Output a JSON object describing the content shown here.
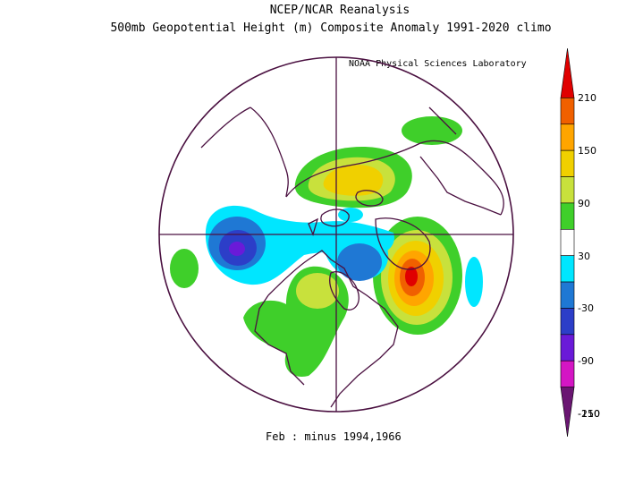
{
  "header": {
    "title": "NCEP/NCAR Reanalysis",
    "subtitle": "500mb Geopotential Height (m) Composite Anomaly 1991-2020 climo",
    "credit": "NOAA Physical Sciences Laboratory"
  },
  "footer": {
    "caption": "Feb :  minus 1994,1966"
  },
  "colorbar": {
    "labels": [
      "210",
      "150",
      "90",
      "30",
      "-30",
      "-90",
      "-150",
      "-210"
    ],
    "colors": [
      "#e00000",
      "#f06000",
      "#ffa500",
      "#f0d000",
      "#c8e13c",
      "#3fcf2a",
      "#ffffff",
      "#00e6ff",
      "#1f78d4",
      "#2c3ec8",
      "#6a1ad8",
      "#d416c4",
      "#6a1672"
    ]
  },
  "anomaly_colors": {
    "positive_30": "#3fcf2a",
    "positive_60": "#c8e13c",
    "positive_90": "#f0d000",
    "positive_120": "#ffa500",
    "positive_150": "#f06000",
    "positive_180": "#e00000",
    "negative_30": "#00e6ff",
    "negative_60": "#1f78d4",
    "negative_90": "#2c3ec8",
    "negative_120": "#6a1ad8"
  },
  "map_colors": {
    "coastline": "#4a1040",
    "grid": "#4a1040"
  }
}
